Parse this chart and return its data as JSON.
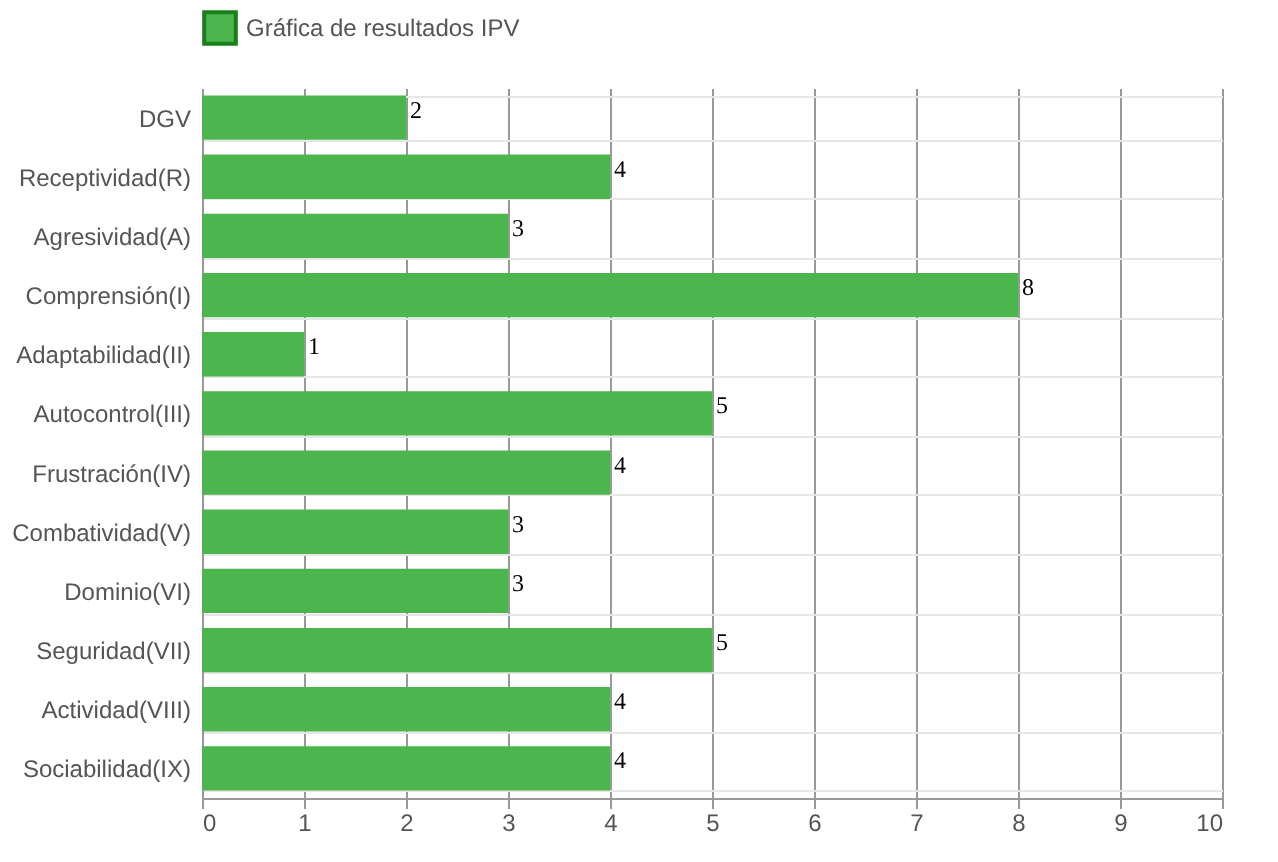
{
  "chart_data": {
    "type": "bar",
    "orientation": "horizontal",
    "categories": [
      "DGV",
      "Receptividad(R)",
      "Agresividad(A)",
      "Comprensión(I)",
      "Adaptabilidad(II)",
      "Autocontrol(III)",
      "Frustración(IV)",
      "Combatividad(V)",
      "Dominio(VI)",
      "Seguridad(VII)",
      "Actividad(VIII)",
      "Sociabilidad(IX)"
    ],
    "series": [
      {
        "name": "Gráfica de resultados IPV",
        "color": "#4db54d",
        "values": [
          2,
          4,
          3,
          8,
          1,
          5,
          4,
          3,
          3,
          5,
          4,
          4
        ]
      }
    ],
    "xlim": [
      0,
      10
    ],
    "xticks": [
      0,
      1,
      2,
      3,
      4,
      5,
      6,
      7,
      8,
      9,
      10
    ],
    "grid": true,
    "legend": "top",
    "data_labels": true
  }
}
